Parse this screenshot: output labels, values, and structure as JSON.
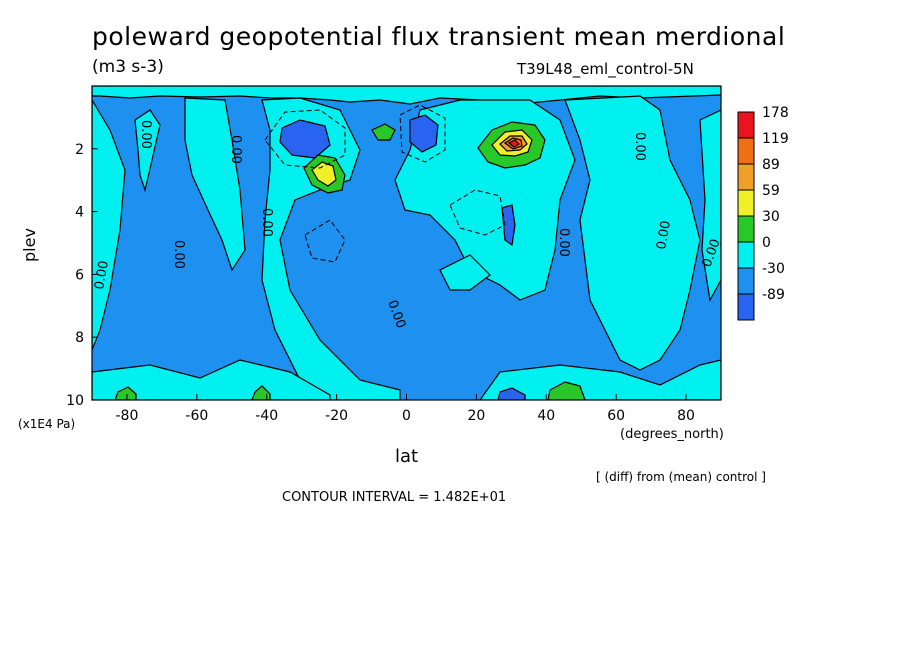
{
  "chart_data": {
    "type": "heatmap",
    "title": "poleward geopotential flux transient mean merdional",
    "subtitle": "(m3 s-3)",
    "run_label": "T39L48_eml_control-5N",
    "xlabel": "lat",
    "x_units": "(degrees_north)",
    "ylabel": "plev",
    "y_units": "(x1E4 Pa)",
    "xlim": [
      -90,
      90
    ],
    "ylim": [
      10,
      0
    ],
    "x_ticks": [
      "-80",
      "-60",
      "-40",
      "-20",
      "0",
      "20",
      "40",
      "60",
      "80"
    ],
    "x_tick_values": [
      -80,
      -60,
      -40,
      -20,
      0,
      20,
      40,
      60,
      80
    ],
    "y_ticks": [
      "2",
      "4",
      "6",
      "8",
      "10"
    ],
    "y_tick_values": [
      2,
      4,
      6,
      8,
      10
    ],
    "contour_label": "0.00",
    "contour_interval_text": "CONTOUR INTERVAL = 1.482E+01",
    "note": "[ (diff) from (mean) control ]",
    "colorbar": {
      "labels": [
        "178",
        "119",
        "89",
        "59",
        "30",
        "0",
        "-30",
        "-89"
      ],
      "colors": [
        "#e8141e",
        "#f06e14",
        "#f0a028",
        "#f0f028",
        "#28c828",
        "#00f0f0",
        "#1e90f0",
        "#2864f0"
      ]
    },
    "features": [
      {
        "lat": 30,
        "plev": 2.0,
        "value": 178,
        "sign": "positive"
      },
      {
        "lat": -25,
        "plev": 3.0,
        "value": 59,
        "sign": "positive"
      },
      {
        "lat": 45,
        "plev": 10.0,
        "value": 30,
        "sign": "positive"
      },
      {
        "lat": -82,
        "plev": 10.0,
        "value": 30,
        "sign": "positive"
      },
      {
        "lat": -40,
        "plev": 10.0,
        "value": 30,
        "sign": "positive"
      },
      {
        "lat": -30,
        "plev": 1.6,
        "value": -89,
        "sign": "negative"
      },
      {
        "lat": 5,
        "plev": 1.6,
        "value": -89,
        "sign": "negative"
      },
      {
        "lat": 28,
        "plev": 4.3,
        "value": -89,
        "sign": "negative"
      }
    ]
  }
}
